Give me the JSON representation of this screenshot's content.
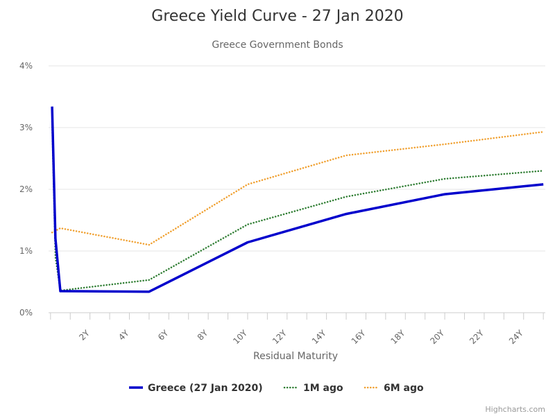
{
  "chart_data": {
    "type": "line",
    "title": "Greece Yield Curve - 27 Jan 2020",
    "subtitle": "Greece Government Bonds",
    "xlabel": "Residual Maturity",
    "ylabel": "",
    "xlim": [
      -0.1,
      25.1
    ],
    "ylim": [
      0,
      4
    ],
    "x_ticks": [
      2,
      4,
      6,
      8,
      10,
      12,
      14,
      16,
      18,
      20,
      22,
      24
    ],
    "x_tick_labels": [
      "2Y",
      "4Y",
      "6Y",
      "8Y",
      "10Y",
      "12Y",
      "14Y",
      "16Y",
      "18Y",
      "20Y",
      "22Y",
      "24Y"
    ],
    "y_ticks": [
      0,
      1,
      2,
      3,
      4
    ],
    "y_tick_labels": [
      "0%",
      "1%",
      "2%",
      "3%",
      "4%"
    ],
    "grid": true,
    "legend_position": "bottom-center",
    "series": [
      {
        "name": "Greece (27 Jan 2020)",
        "color": "#0000cc",
        "style": "solid",
        "points": [
          [
            0.08,
            3.34
          ],
          [
            0.25,
            1.2
          ],
          [
            0.5,
            0.35
          ],
          [
            5,
            0.34
          ],
          [
            10,
            1.14
          ],
          [
            15,
            1.6
          ],
          [
            20,
            1.92
          ],
          [
            25,
            2.08
          ]
        ]
      },
      {
        "name": "1M ago",
        "color": "#2e7d32",
        "style": "dotted",
        "points": [
          [
            0.08,
            3.1
          ],
          [
            0.25,
            0.9
          ],
          [
            0.5,
            0.36
          ],
          [
            5,
            0.53
          ],
          [
            10,
            1.43
          ],
          [
            15,
            1.88
          ],
          [
            20,
            2.17
          ],
          [
            25,
            2.3
          ]
        ]
      },
      {
        "name": "6M ago",
        "color": "#f0a030",
        "style": "dotted",
        "points": [
          [
            0.08,
            1.3
          ],
          [
            0.5,
            1.37
          ],
          [
            5,
            1.1
          ],
          [
            10,
            2.08
          ],
          [
            15,
            2.55
          ],
          [
            20,
            2.73
          ],
          [
            25,
            2.93
          ]
        ]
      }
    ]
  },
  "credits": "Highcharts.com"
}
